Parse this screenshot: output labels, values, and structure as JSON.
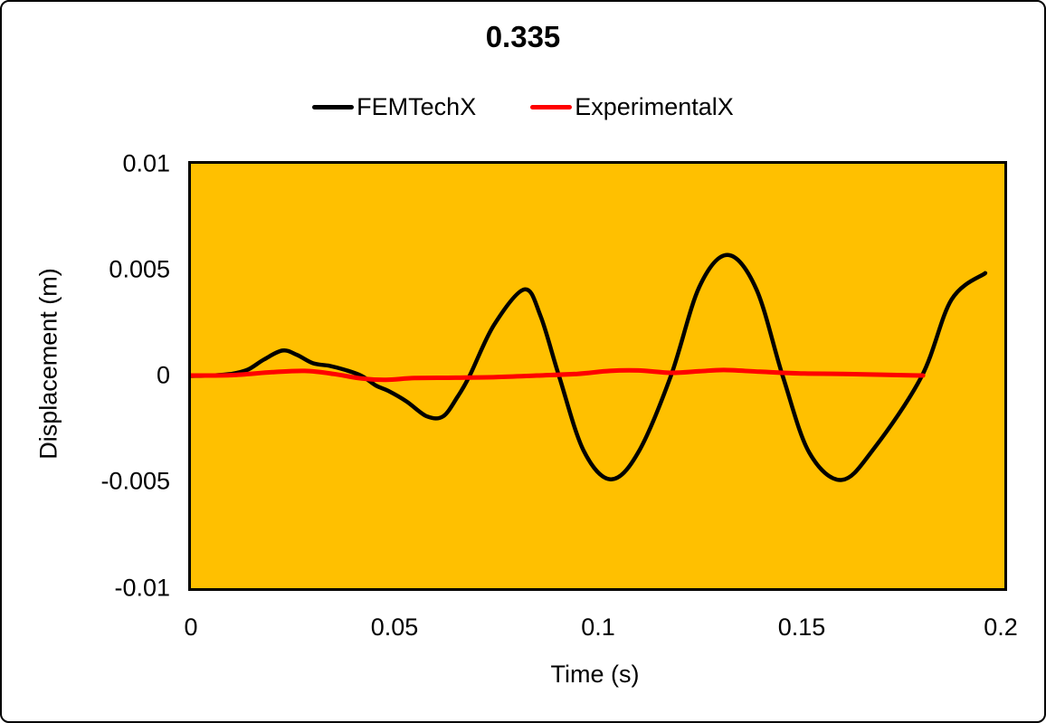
{
  "chart_data": {
    "type": "line",
    "title": "0.335",
    "xlabel": "Time (s)",
    "ylabel": "Displacement (m)",
    "xlim": [
      0,
      0.2
    ],
    "ylim": [
      -0.01,
      0.01
    ],
    "xticks": [
      "0",
      "0.05",
      "0.1",
      "0.15",
      "0.2"
    ],
    "yticks": [
      "0.01",
      "0.005",
      "0",
      "-0.005",
      "-0.01"
    ],
    "grid": false,
    "legend_position": "top-center",
    "plot_background": "#FFC000",
    "series": [
      {
        "name": "FEMTechX",
        "color": "#000000",
        "x": [
          0,
          0.005,
          0.01,
          0.014,
          0.018,
          0.0225,
          0.026,
          0.03,
          0.034,
          0.038,
          0.042,
          0.0455,
          0.0485,
          0.053,
          0.058,
          0.062,
          0.0655,
          0.0685,
          0.0745,
          0.082,
          0.086,
          0.0905,
          0.0965,
          0.1032,
          0.11,
          0.118,
          0.125,
          0.132,
          0.139,
          0.1455,
          0.152,
          0.16,
          0.168,
          0.1797,
          0.187,
          0.1953
        ],
        "y": [
          0,
          2e-05,
          0.0001,
          0.0003,
          0.00078,
          0.0012,
          0.001,
          0.0006,
          0.00048,
          0.00028,
          0,
          -0.00045,
          -0.0007,
          -0.0012,
          -0.0019,
          -0.0019,
          -0.001,
          0,
          0.0024,
          0.00408,
          0.0028,
          0,
          -0.0035,
          -0.00487,
          -0.0036,
          0,
          0.0042,
          0.0057,
          0.0041,
          0,
          -0.0036,
          -0.0049,
          -0.0034,
          0,
          0.0036,
          0.00485
        ]
      },
      {
        "name": "ExperimentalX",
        "color": "#FF0000",
        "x": [
          0,
          0.01,
          0.02,
          0.028,
          0.035,
          0.042,
          0.048,
          0.055,
          0.065,
          0.075,
          0.085,
          0.095,
          0.103,
          0.11,
          0.118,
          0.125,
          0.131,
          0.14,
          0.15,
          0.16,
          0.17,
          0.18
        ],
        "y": [
          2e-05,
          4e-05,
          0.00018,
          0.00024,
          0.0001,
          -0.00012,
          -0.00018,
          -0.0001,
          -8e-05,
          -5e-05,
          2e-05,
          0.0001,
          0.00024,
          0.00026,
          0.00015,
          0.00022,
          0.00028,
          0.0002,
          0.00012,
          0.0001,
          6e-05,
          2e-05
        ]
      }
    ]
  }
}
